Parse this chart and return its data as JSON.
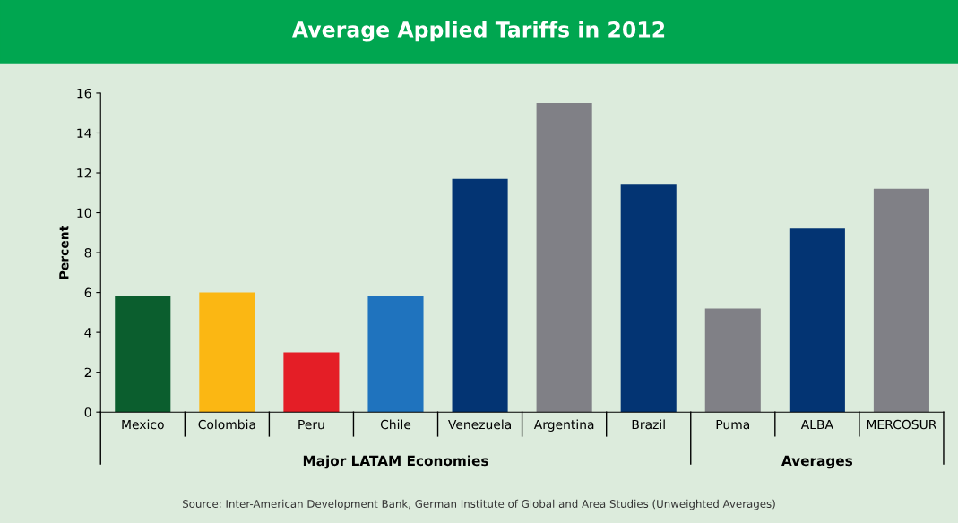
{
  "chart_data": {
    "type": "bar",
    "title": "Average Applied Tariffs in 2012",
    "ylabel": "Percent",
    "categories": [
      "Mexico",
      "Colombia",
      "Peru",
      "Chile",
      "Venezuela",
      "Argentina",
      "Brazil",
      "Puma",
      "ALBA",
      "MERCOSUR"
    ],
    "values": [
      5.8,
      6.0,
      3.0,
      5.8,
      11.7,
      15.5,
      11.4,
      5.2,
      9.2,
      11.2
    ],
    "colors": [
      "#0b5e2e",
      "#fbb713",
      "#e41e26",
      "#1f73be",
      "#033473",
      "#808086",
      "#033473",
      "#808086",
      "#033473",
      "#808086"
    ],
    "ylim": [
      0,
      16
    ],
    "yticks": [
      0,
      2,
      4,
      6,
      8,
      10,
      12,
      14,
      16
    ],
    "grid": false,
    "legend": false,
    "annotations": [
      "Major LATAM Economies",
      "Averages",
      "Source: Inter-American Development Bank, German Institute of Global and Area Studies (Unweighted Averages)"
    ]
  }
}
